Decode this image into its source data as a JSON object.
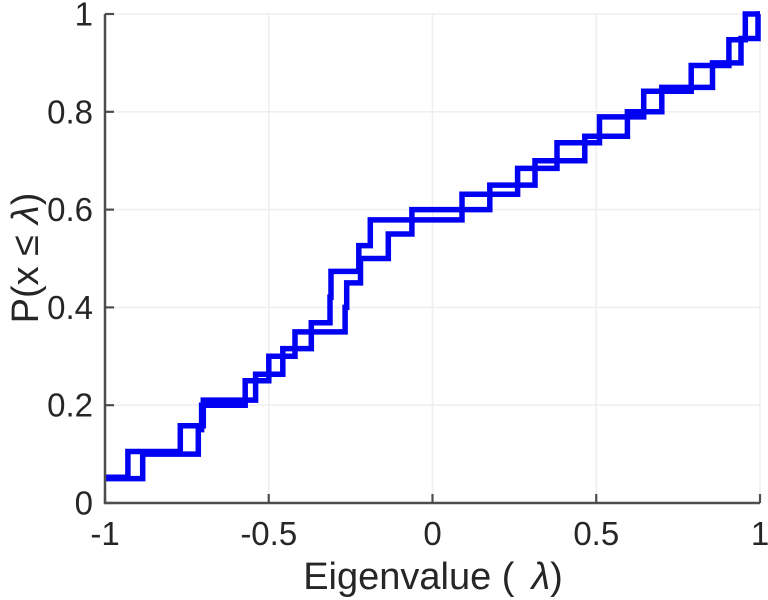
{
  "figure": {
    "background": "#ffffff",
    "accent_color": "#0202f2",
    "axis_color": "#4d4d4d",
    "text_color": "#262626",
    "grid_color": "#efefef"
  },
  "chart_data": {
    "type": "line",
    "subtype": "ecdf-stairs",
    "title": "",
    "xlabel": "Eigenvalue ( λ)",
    "xlabel_parts": [
      "Eigenvalue (",
      "λ",
      ")"
    ],
    "ylabel": "P(x ≤ λ)",
    "ylabel_parts": [
      "P(x ≤",
      "λ",
      ")"
    ],
    "xlim": [
      -1,
      1
    ],
    "ylim": [
      0,
      1
    ],
    "xticks": [
      -1,
      -0.5,
      0,
      0.5,
      1
    ],
    "xtick_labels": [
      "-1",
      "-0.5",
      "0",
      "0.5",
      "1"
    ],
    "yticks": [
      0,
      0.2,
      0.4,
      0.6,
      0.8,
      1
    ],
    "ytick_labels": [
      "0",
      "0.2",
      "0.4",
      "0.6",
      "0.8",
      "1"
    ],
    "grid": true,
    "line_color": "#0202f2",
    "line_width": 5.5,
    "series": [
      {
        "name": "ecdf-stairs-1",
        "n": 19,
        "eigenvalues": [
          -1.0,
          -0.93,
          -0.77,
          -0.7,
          -0.54,
          -0.457,
          -0.37,
          -0.313,
          -0.31,
          -0.225,
          -0.19,
          0.09,
          0.26,
          0.38,
          0.51,
          0.645,
          0.79,
          0.905,
          0.955
        ]
      },
      {
        "name": "ecdf-stairs-2",
        "n": 20,
        "eigenvalues": [
          -1.0,
          -0.885,
          -0.715,
          -0.705,
          -0.572,
          -0.5,
          -0.42,
          -0.267,
          -0.262,
          -0.22,
          -0.135,
          -0.063,
          0.175,
          0.313,
          0.465,
          0.595,
          0.7,
          0.855,
          0.942,
          0.994
        ]
      }
    ]
  }
}
